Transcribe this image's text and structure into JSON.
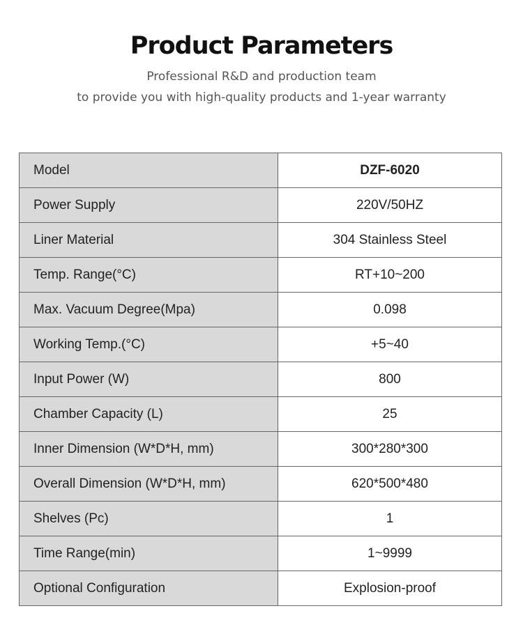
{
  "header": {
    "title": "Product Parameters",
    "subtitle_lines": [
      "Professional R&D and production team",
      "to provide you with high-quality products and 1-year warranty"
    ]
  },
  "table": {
    "rows": [
      [
        "Model",
        "DZF-6020"
      ],
      [
        "Power Supply",
        "220V/50HZ"
      ],
      [
        "Liner Material",
        "304 Stainless Steel"
      ],
      [
        "Temp. Range(°C)",
        "RT+10~200"
      ],
      [
        "Max. Vacuum Degree(Mpa)",
        "0.098"
      ],
      [
        "Working Temp.(°C)",
        "+5~40"
      ],
      [
        "Input Power (W)",
        "800"
      ],
      [
        "Chamber Capacity (L)",
        "25"
      ],
      [
        "Inner Dimension (W*D*H, mm)",
        "300*280*300"
      ],
      [
        "Overall Dimension (W*D*H, mm)",
        "620*500*480"
      ],
      [
        "Shelves (Pc)",
        "1"
      ],
      [
        "Time Range(min)",
        "1~9999"
      ],
      [
        "Optional Configuration",
        "Explosion-proof"
      ]
    ]
  }
}
